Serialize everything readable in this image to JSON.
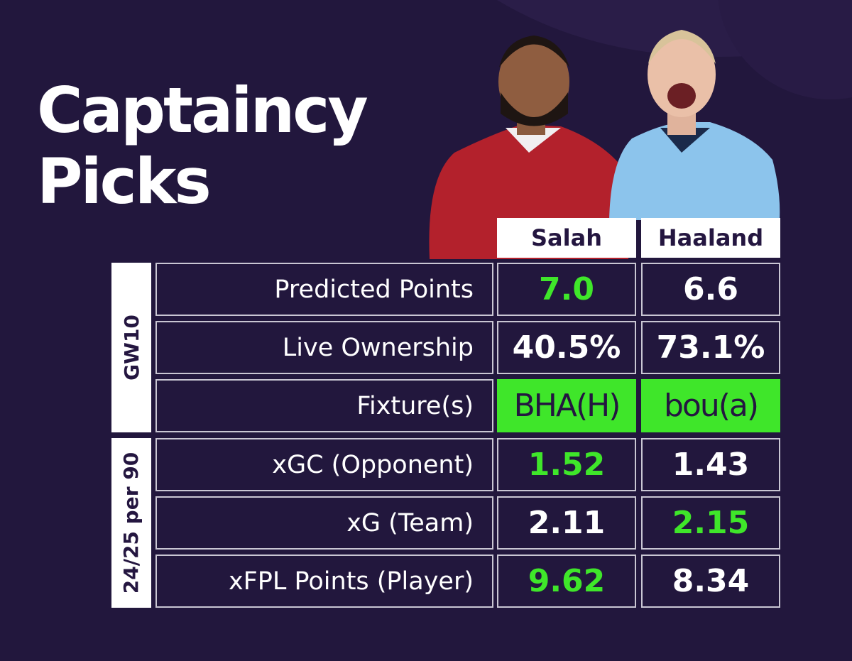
{
  "title": [
    "Captaincy",
    "Picks"
  ],
  "colors": {
    "text": "#ffffff",
    "highlight": "#3fe62a",
    "header_text": "#241640"
  },
  "table": {
    "columns": [
      "Salah",
      "Haaland"
    ],
    "groups": [
      {
        "label": "GW10",
        "rows": [
          {
            "label": "Predicted Points",
            "values": [
              "7.0",
              "6.6"
            ],
            "highlight": [
              0
            ],
            "fill": false
          },
          {
            "label": "Live Ownership",
            "values": [
              "40.5%",
              "73.1%"
            ],
            "highlight": [],
            "fill": false
          },
          {
            "label": "Fixture(s)",
            "values": [
              "BHA(H)",
              "bou(a)"
            ],
            "highlight": [
              0,
              1
            ],
            "fill": true
          }
        ]
      },
      {
        "label": "24/25 per 90",
        "rows": [
          {
            "label": "xGC (Opponent)",
            "values": [
              "1.52",
              "1.43"
            ],
            "highlight": [
              0
            ],
            "fill": false
          },
          {
            "label": "xG (Team)",
            "values": [
              "2.11",
              "2.15"
            ],
            "highlight": [
              1
            ],
            "fill": false
          },
          {
            "label": "xFPL Points (Player)",
            "values": [
              "9.62",
              "8.34"
            ],
            "highlight": [
              0
            ],
            "fill": false
          }
        ]
      }
    ]
  }
}
